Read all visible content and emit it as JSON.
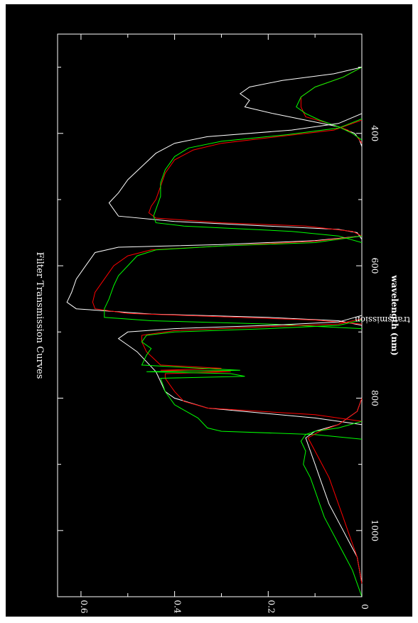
{
  "chart_data": {
    "type": "line",
    "orientation": "rotated-90-clockwise",
    "title": "Filter Transmission Curves",
    "xlabel": "wavelength (nm)",
    "ylabel": "transmission",
    "xlim": [
      250,
      1100
    ],
    "ylim": [
      0,
      0.65
    ],
    "x_ticks": [
      400,
      600,
      800,
      1000
    ],
    "x_tick_labels": [
      "400",
      "600",
      "800",
      "1000"
    ],
    "y_ticks": [
      0,
      0.2,
      0.4,
      0.6
    ],
    "y_tick_labels": [
      "0",
      "0.2",
      "0.4",
      "0.6"
    ],
    "grid": false,
    "background": "#000000",
    "foreground": "#ffffff",
    "series": [
      {
        "color": "#ffffff",
        "x": [
          300,
          310,
          320,
          330,
          340,
          350,
          360,
          370,
          380,
          390,
          400,
          410,
          420
        ],
        "y": [
          0,
          0.06,
          0.17,
          0.24,
          0.26,
          0.24,
          0.25,
          0.19,
          0.12,
          0.05,
          0.015,
          0.005,
          0
        ]
      },
      {
        "color": "#ff0000",
        "x": [
          300,
          315,
          330,
          345,
          360,
          375,
          385,
          395,
          405,
          415
        ],
        "y": [
          0,
          0.04,
          0.1,
          0.13,
          0.13,
          0.12,
          0.07,
          0.03,
          0.01,
          0
        ]
      },
      {
        "color": "#00ff00",
        "x": [
          300,
          315,
          330,
          345,
          360,
          370,
          380,
          390,
          400,
          410
        ],
        "y": [
          0,
          0.04,
          0.1,
          0.13,
          0.14,
          0.12,
          0.09,
          0.05,
          0.02,
          0
        ]
      },
      {
        "color": "#ffffff",
        "x": [
          370,
          385,
          395,
          405,
          415,
          430,
          450,
          470,
          490,
          505,
          515,
          525,
          533,
          540,
          545,
          550,
          560
        ],
        "y": [
          0,
          0.05,
          0.15,
          0.33,
          0.4,
          0.44,
          0.47,
          0.5,
          0.52,
          0.54,
          0.53,
          0.52,
          0.4,
          0.2,
          0.05,
          0.01,
          0
        ]
      },
      {
        "color": "#ff0000",
        "x": [
          380,
          395,
          405,
          415,
          425,
          440,
          460,
          480,
          500,
          510,
          520,
          528,
          535,
          540,
          548,
          555
        ],
        "y": [
          0,
          0.06,
          0.18,
          0.3,
          0.36,
          0.4,
          0.42,
          0.43,
          0.44,
          0.45,
          0.455,
          0.44,
          0.3,
          0.12,
          0.02,
          0
        ]
      },
      {
        "color": "#00ff00",
        "x": [
          378,
          392,
          402,
          412,
          422,
          435,
          455,
          475,
          495,
          515,
          525,
          535,
          540,
          548,
          555,
          565
        ],
        "y": [
          0,
          0.05,
          0.16,
          0.3,
          0.37,
          0.4,
          0.42,
          0.43,
          0.43,
          0.44,
          0.445,
          0.44,
          0.38,
          0.15,
          0.05,
          0
        ]
      },
      {
        "color": "#ffffff",
        "x": [
          555,
          562,
          568,
          572,
          580,
          590,
          600,
          620,
          640,
          655,
          665,
          673,
          678,
          683,
          690
        ],
        "y": [
          0,
          0.1,
          0.3,
          0.52,
          0.57,
          0.58,
          0.59,
          0.61,
          0.62,
          0.63,
          0.61,
          0.45,
          0.2,
          0.05,
          0
        ]
      },
      {
        "color": "#ff0000",
        "x": [
          555,
          563,
          570,
          576,
          585,
          600,
          620,
          640,
          655,
          665,
          672,
          677,
          682,
          688
        ],
        "y": [
          0,
          0.1,
          0.3,
          0.45,
          0.5,
          0.53,
          0.55,
          0.57,
          0.575,
          0.57,
          0.5,
          0.3,
          0.1,
          0
        ]
      },
      {
        "color": "#00ff00",
        "x": [
          555,
          565,
          570,
          576,
          585,
          600,
          615,
          630,
          650,
          665,
          678,
          683,
          688,
          695
        ],
        "y": [
          0,
          0.1,
          0.3,
          0.44,
          0.48,
          0.5,
          0.52,
          0.53,
          0.54,
          0.55,
          0.55,
          0.45,
          0.2,
          0
        ]
      },
      {
        "color": "#ffffff",
        "x": [
          675,
          685,
          690,
          695,
          700,
          710,
          720,
          730,
          745,
          760,
          775,
          790,
          800,
          815,
          830,
          840
        ],
        "y": [
          0,
          0.05,
          0.2,
          0.4,
          0.5,
          0.52,
          0.5,
          0.48,
          0.46,
          0.44,
          0.43,
          0.42,
          0.4,
          0.33,
          0.1,
          0
        ]
      },
      {
        "color": "#ff0000",
        "x": [
          680,
          688,
          692,
          698,
          705,
          715,
          730,
          750,
          755,
          758,
          760,
          763,
          770,
          790,
          805,
          815,
          825,
          835
        ],
        "y": [
          0,
          0.05,
          0.2,
          0.4,
          0.47,
          0.47,
          0.46,
          0.43,
          0.3,
          0.43,
          0.28,
          0.42,
          0.42,
          0.4,
          0.38,
          0.33,
          0.1,
          0
        ]
      },
      {
        "color": "#00ff00",
        "x": [
          682,
          690,
          695,
          700,
          705,
          715,
          725,
          735,
          750,
          758,
          760,
          763,
          767,
          770,
          790,
          810,
          830,
          845,
          850,
          855,
          862
        ],
        "y": [
          0,
          0.05,
          0.2,
          0.4,
          0.46,
          0.47,
          0.45,
          0.46,
          0.47,
          0.26,
          0.46,
          0.28,
          0.25,
          0.43,
          0.42,
          0.4,
          0.35,
          0.33,
          0.3,
          0.1,
          0
        ]
      },
      {
        "color": "#ffffff",
        "x": [
          800,
          820,
          840,
          850,
          860,
          880,
          900,
          920,
          940,
          960,
          980,
          1000,
          1020,
          1040,
          1060,
          1080
        ],
        "y": [
          0,
          0.01,
          0.05,
          0.1,
          0.12,
          0.11,
          0.1,
          0.09,
          0.08,
          0.07,
          0.055,
          0.04,
          0.025,
          0.01,
          0.005,
          0
        ]
      },
      {
        "color": "#ff0000",
        "x": [
          800,
          820,
          840,
          850,
          860,
          880,
          900,
          920,
          940,
          960,
          980,
          1000,
          1020,
          1040,
          1060,
          1080
        ],
        "y": [
          0,
          0.01,
          0.05,
          0.09,
          0.115,
          0.1,
          0.085,
          0.07,
          0.06,
          0.05,
          0.04,
          0.03,
          0.02,
          0.01,
          0.005,
          0
        ]
      },
      {
        "color": "#00ff00",
        "x": [
          835,
          845,
          850,
          855,
          865,
          880,
          900,
          920,
          940,
          960,
          980,
          1000,
          1020,
          1040,
          1060,
          1080,
          1100
        ],
        "y": [
          0,
          0.05,
          0.1,
          0.12,
          0.13,
          0.12,
          0.125,
          0.11,
          0.1,
          0.09,
          0.08,
          0.065,
          0.05,
          0.035,
          0.02,
          0.01,
          0
        ]
      }
    ]
  }
}
